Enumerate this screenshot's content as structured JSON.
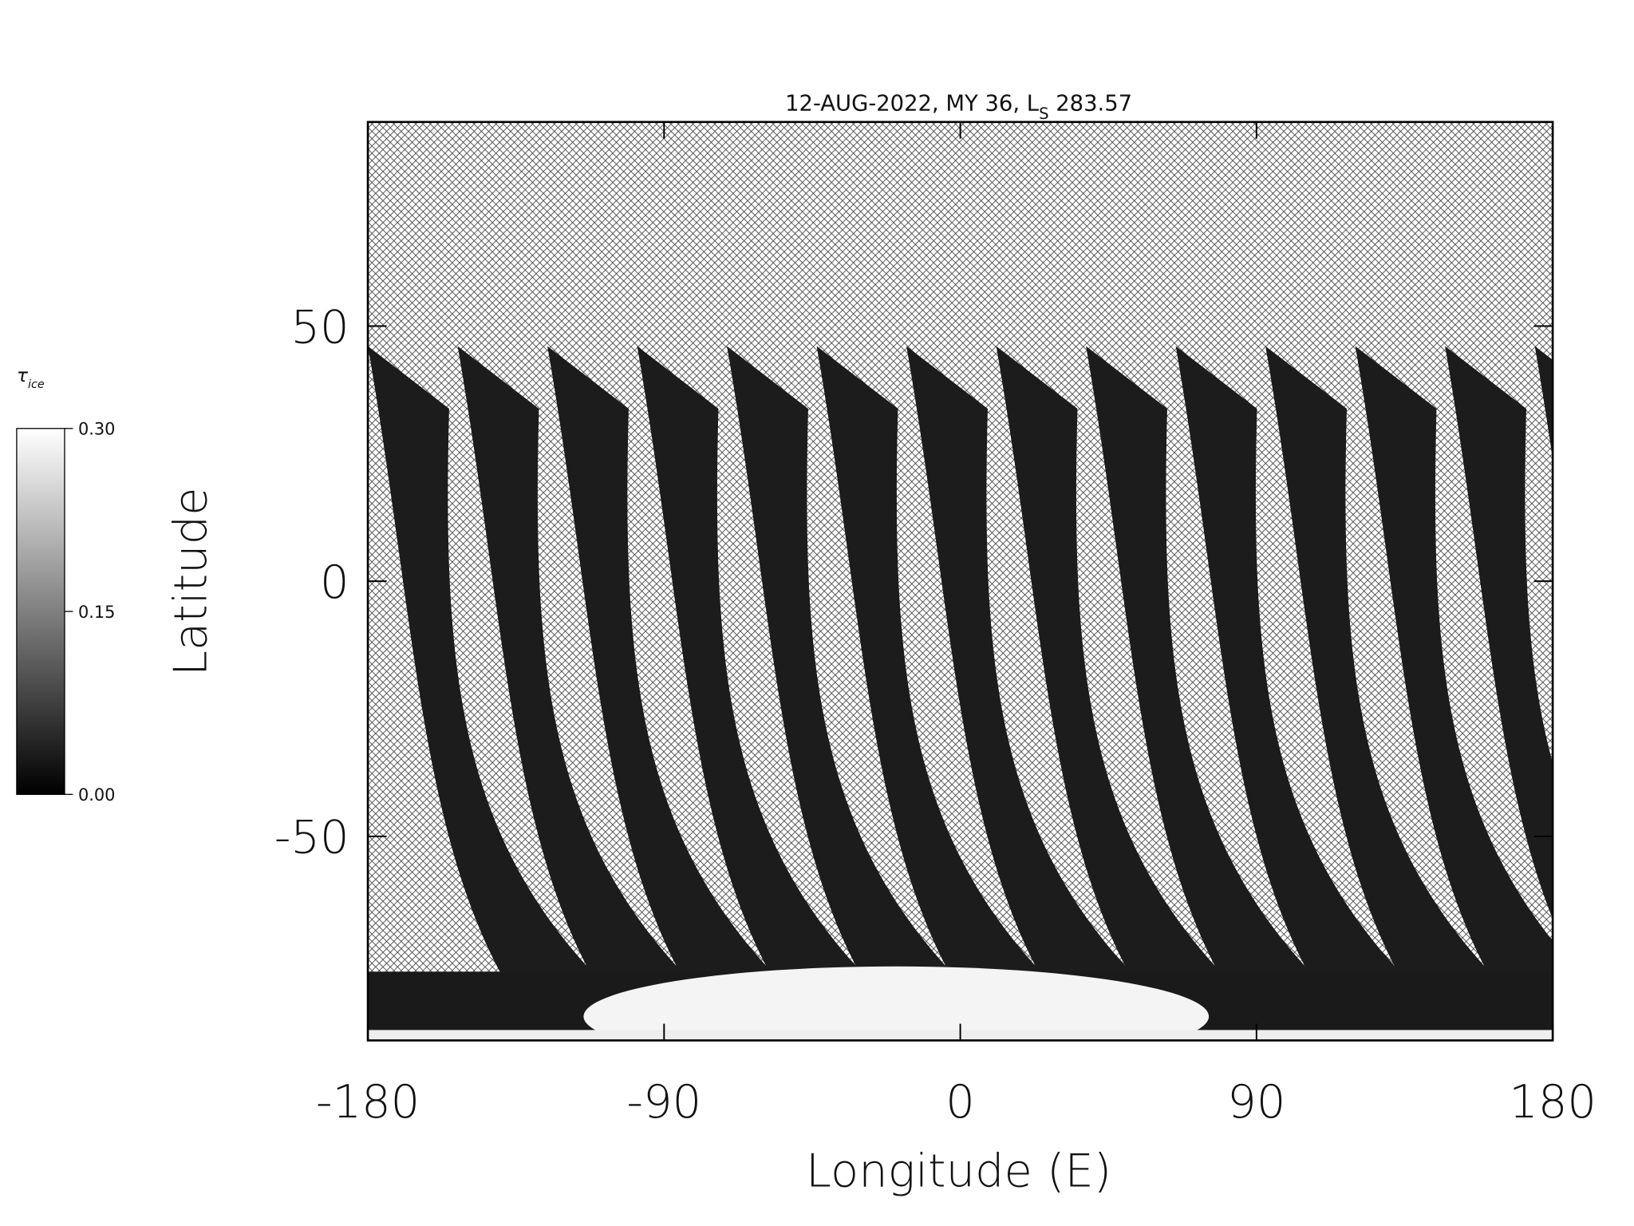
{
  "chart_data": {
    "type": "map",
    "title": {
      "prefix": "12-AUG-2022, MY 36,  L",
      "subscript": "S",
      "suffix": " 283.57"
    },
    "x_label": "Longitude (E)",
    "y_label": "Latitude",
    "xlim": [
      -180,
      180
    ],
    "xticks": [
      -180,
      -90,
      0,
      90,
      180
    ],
    "ylim": [
      -90,
      90
    ],
    "yticks": [
      -50,
      0,
      50
    ],
    "colorbar": {
      "label": "τ",
      "label_subscript": "ice",
      "clim": [
        0,
        0.3
      ],
      "ticks": [
        {
          "value": 0,
          "label": "0.00"
        },
        {
          "value": 0.15,
          "label": "0.15"
        },
        {
          "value": 0.3,
          "label": "0.30"
        }
      ],
      "colors": [
        "#000000",
        "#ffffff"
      ]
    }
  }
}
